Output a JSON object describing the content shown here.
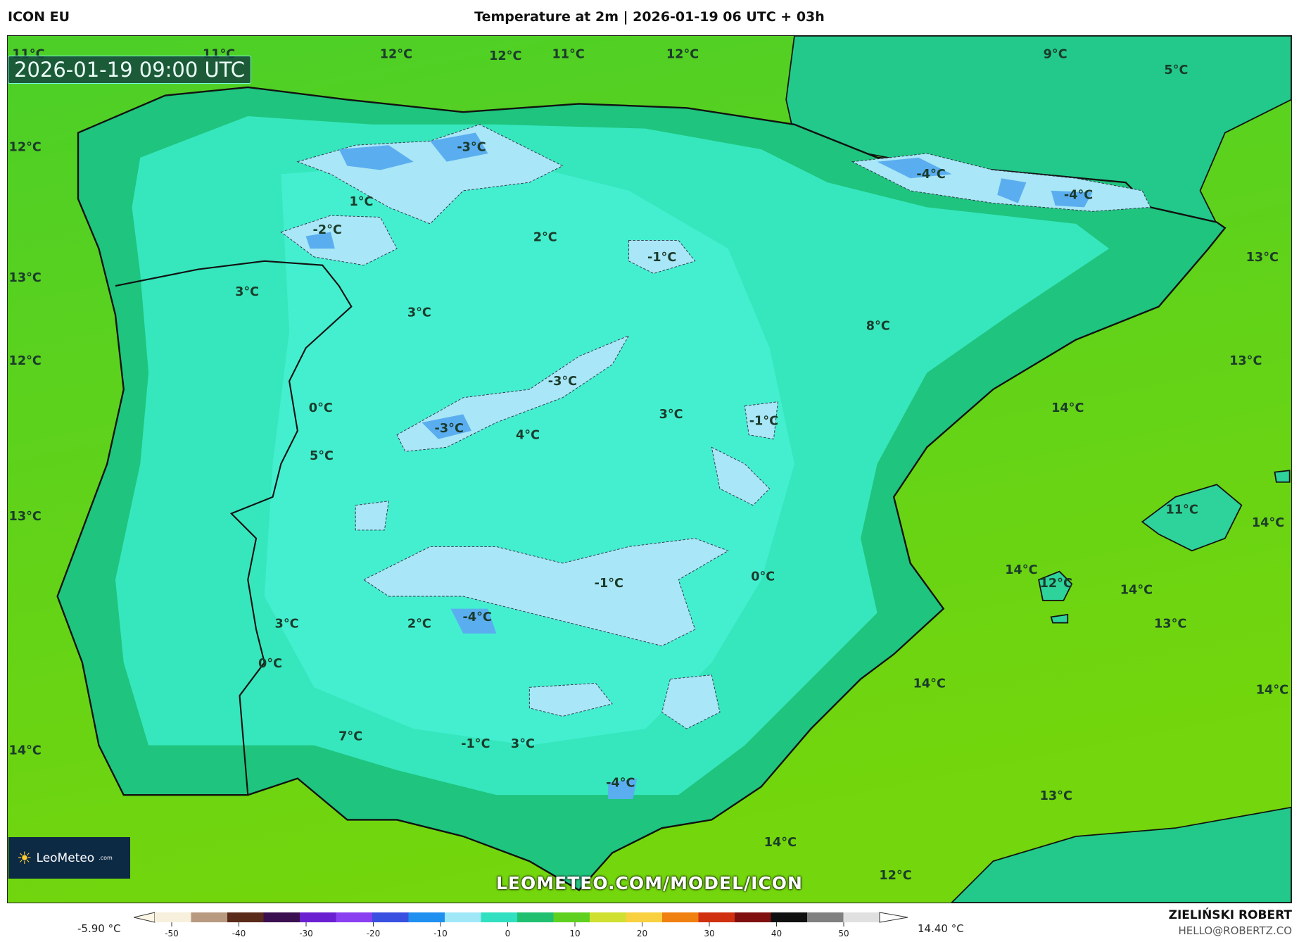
{
  "header": {
    "model": "ICON EU",
    "title": "Temperature at 2m | 2026-01-19 06 UTC + 03h"
  },
  "map": {
    "valid_time": "2026-01-19 09:00 UTC",
    "watermark_url": "LEOMETEO.COM/MODEL/ICON",
    "logo": {
      "text": "LeoMeteo",
      "suffix": ".com"
    },
    "colors": {
      "sea_north": "#4ccf28",
      "sea_south": "#6cd412",
      "land": "#33e6b8",
      "coast": "#1fc47e",
      "cold": "#a9e6f7",
      "very_cold": "#5aaef0"
    },
    "labels": [
      "11°C",
      "11°C",
      "12°C",
      "12°C",
      "11°C",
      "12°C",
      "9°C",
      "5°C",
      "12°C",
      "-3°C",
      "1°C",
      "-2°C",
      "2°C",
      "-1°C",
      "-4°C",
      "-4°C",
      "13°C",
      "3°C",
      "3°C",
      "8°C",
      "13°C",
      "12°C",
      "13°C",
      "-3°C",
      "0°C",
      "14°C",
      "3°C",
      "-1°C",
      "-3°C",
      "4°C",
      "5°C",
      "13°C",
      "11°C",
      "14°C",
      "14°C",
      "0°C",
      "-1°C",
      "12°C",
      "14°C",
      "-4°C",
      "3°C",
      "2°C",
      "13°C",
      "0°C",
      "14°C",
      "14°C",
      "7°C",
      "-1°C",
      "3°C",
      "14°C",
      "-4°C",
      "13°C",
      "14°C",
      "12°C"
    ]
  },
  "legend": {
    "min_label": "-5.90 °C",
    "max_label": "14.40 °C",
    "ticks": [
      "-50",
      "-40",
      "-30",
      "-20",
      "-10",
      "0",
      "10",
      "20",
      "30",
      "40",
      "50"
    ],
    "colors": [
      "#f6f0dc",
      "#b89a80",
      "#5a2a1a",
      "#3a1050",
      "#6a20d0",
      "#8a40f0",
      "#3a50e0",
      "#2090f0",
      "#a0e8f8",
      "#30e0c0",
      "#20c070",
      "#60d020",
      "#d0e030",
      "#f8d040",
      "#f08010",
      "#d03010",
      "#801010",
      "#101010",
      "#808080",
      "#e0e0e0"
    ]
  },
  "credits": {
    "author": "ZIELIŃSKI ROBERT",
    "email": "HELLO@ROBERTZ.CO"
  }
}
